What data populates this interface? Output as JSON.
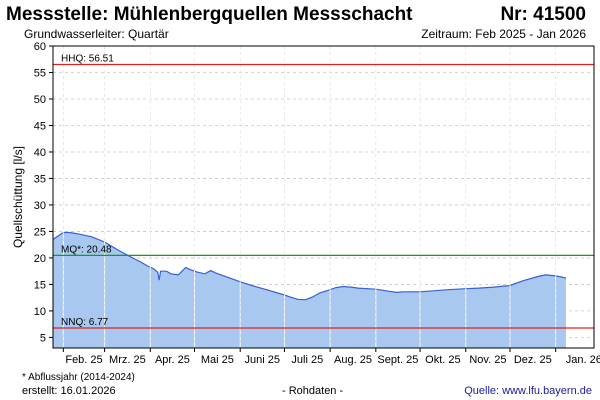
{
  "header": {
    "title": "Messstelle: Mühlenbergquellen Messschacht",
    "nr": "Nr: 41500",
    "subtitle": "Grundwasserleiter: Quartär",
    "period": "Zeitraum: Feb 2025 - Jan 2026"
  },
  "footer": {
    "footnote": "* Abflussjahr (2014-2024)",
    "created": "erstellt:  16.01.2026",
    "rawdata": "- Rohdaten -",
    "source": "Quelle:  www.lfu.bayern.de"
  },
  "colors": {
    "fill": "#a8c8f0",
    "line": "#3a5fd0",
    "hhq": "#e02020",
    "nnq": "#e02020",
    "mq": "#10a010",
    "grid": "#c8c8c8"
  },
  "chart_data": {
    "type": "area",
    "ylabel": "Quellschüttung [l/s]",
    "xlabel": "",
    "ylim": [
      3,
      60
    ],
    "yticks": [
      5,
      10,
      15,
      20,
      25,
      30,
      35,
      40,
      45,
      50,
      55,
      60
    ],
    "xlim": [
      "2025-01-25",
      "2026-01-27"
    ],
    "xticks": [
      {
        "label": "Feb. 25",
        "date": "2025-02-01"
      },
      {
        "label": "Mrz. 25",
        "date": "2025-03-01"
      },
      {
        "label": "Apr. 25",
        "date": "2025-04-01"
      },
      {
        "label": "Mai 25",
        "date": "2025-05-01"
      },
      {
        "label": "Juni 25",
        "date": "2025-06-01"
      },
      {
        "label": "Juli 25",
        "date": "2025-07-01"
      },
      {
        "label": "Aug. 25",
        "date": "2025-08-01"
      },
      {
        "label": "Sept. 25",
        "date": "2025-09-01"
      },
      {
        "label": "Okt. 25",
        "date": "2025-10-01"
      },
      {
        "label": "Nov. 25",
        "date": "2025-11-01"
      },
      {
        "label": "Dez. 25",
        "date": "2025-12-01"
      },
      {
        "label": "Jan. 26",
        "date": "2026-01-01"
      }
    ],
    "reference_lines": [
      {
        "label": "HHQ: 56.51",
        "value": 56.51,
        "color": "#e02020"
      },
      {
        "label": "MQ*: 20.48",
        "value": 20.48,
        "color": "#10a010"
      },
      {
        "label": "NNQ: 6.77",
        "value": 6.77,
        "color": "#e02020"
      }
    ],
    "series": [
      {
        "x": [
          "2025-01-25",
          "2025-02-01",
          "2025-02-05",
          "2025-02-10",
          "2025-02-20",
          "2025-03-01",
          "2025-03-10",
          "2025-03-20",
          "2025-03-25",
          "2025-03-30",
          "2025-04-03",
          "2025-04-06",
          "2025-04-07",
          "2025-04-08",
          "2025-04-12",
          "2025-04-15",
          "2025-04-20",
          "2025-04-25",
          "2025-04-28",
          "2025-05-03",
          "2025-05-08",
          "2025-05-12",
          "2025-05-15",
          "2025-05-20",
          "2025-05-25",
          "2025-06-01",
          "2025-06-10",
          "2025-06-20",
          "2025-07-01",
          "2025-07-05",
          "2025-07-10",
          "2025-07-15",
          "2025-07-20",
          "2025-07-25",
          "2025-08-01",
          "2025-08-05",
          "2025-08-10",
          "2025-08-15",
          "2025-08-20",
          "2025-09-01",
          "2025-09-10",
          "2025-09-15",
          "2025-09-20",
          "2025-09-25",
          "2025-10-01",
          "2025-10-10",
          "2025-10-20",
          "2025-11-01",
          "2025-11-10",
          "2025-11-20",
          "2025-12-01",
          "2025-12-10",
          "2025-12-20",
          "2025-12-25",
          "2026-01-01",
          "2026-01-05",
          "2026-01-08"
        ],
        "values": [
          23.5,
          24.8,
          24.8,
          24.6,
          24.0,
          23.0,
          21.5,
          20.0,
          19.3,
          18.5,
          18.0,
          17.3,
          15.8,
          17.5,
          17.5,
          17.0,
          16.8,
          18.2,
          17.8,
          17.3,
          17.0,
          17.6,
          17.2,
          16.7,
          16.2,
          15.5,
          14.7,
          13.9,
          13.0,
          12.6,
          12.2,
          12.1,
          12.6,
          13.4,
          14.0,
          14.4,
          14.6,
          14.5,
          14.3,
          14.1,
          13.7,
          13.5,
          13.6,
          13.6,
          13.6,
          13.8,
          14.0,
          14.2,
          14.3,
          14.5,
          14.8,
          15.7,
          16.5,
          16.8,
          16.6,
          16.4,
          16.2
        ]
      }
    ]
  }
}
